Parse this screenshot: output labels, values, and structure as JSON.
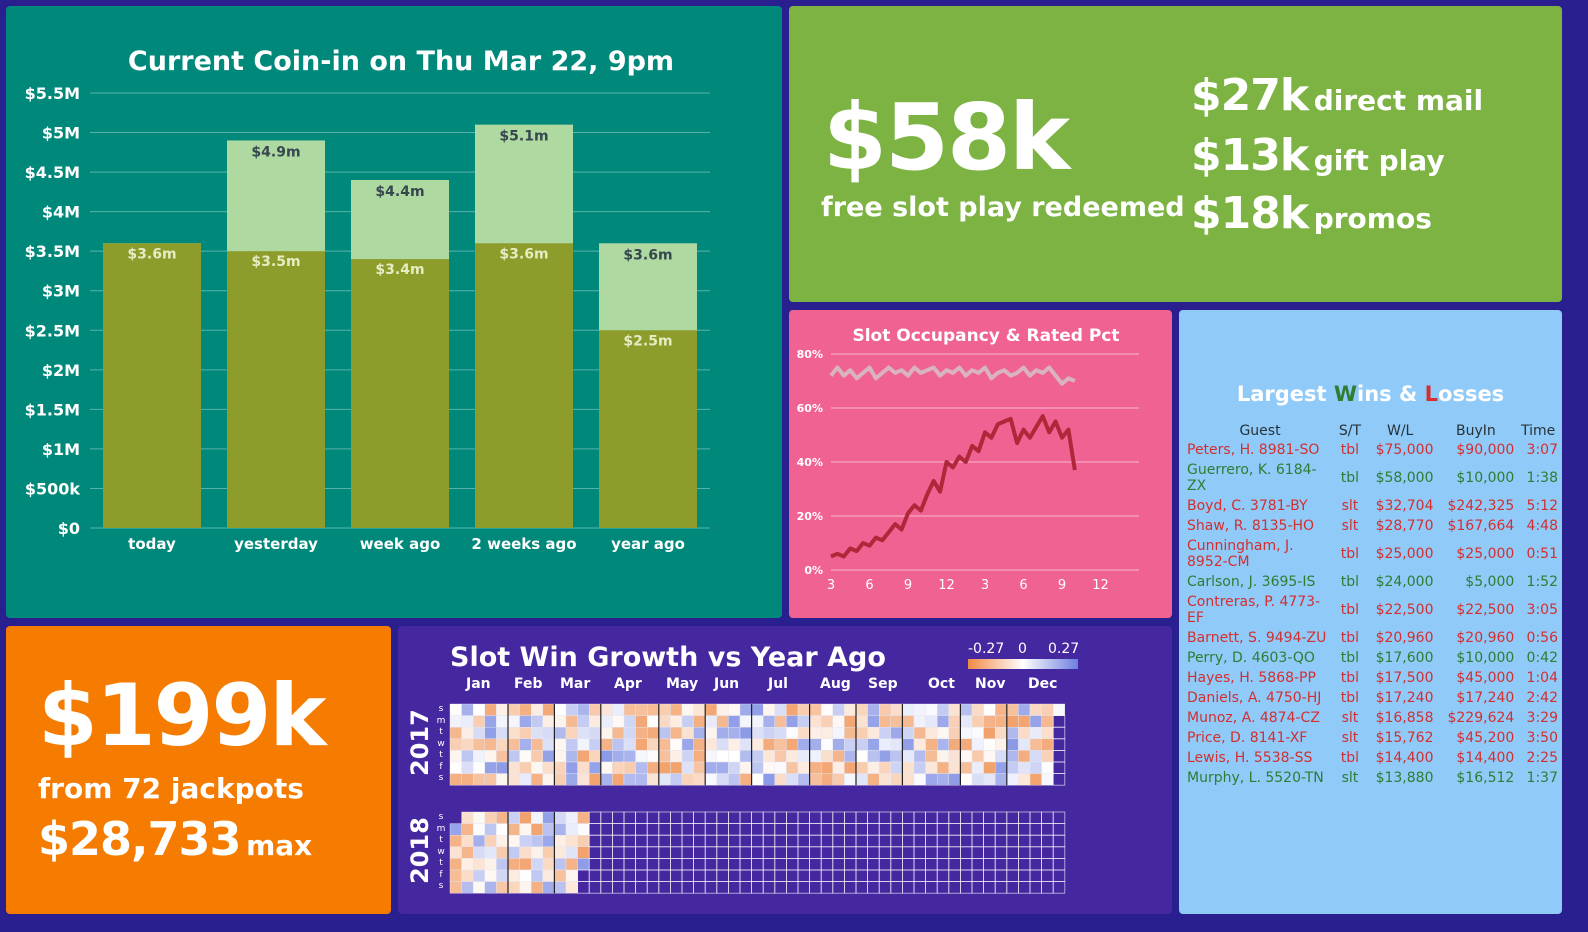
{
  "coin": {
    "title": "Current Coin-in on Thu Mar 22, 9pm",
    "chart_data": {
      "type": "bar",
      "title": "Current Coin-in on Thu Mar 22, 9pm",
      "categories": [
        "today",
        "yesterday",
        "week ago",
        "2 weeks ago",
        "year ago"
      ],
      "series": [
        {
          "values": [
            3.6,
            3.5,
            3.4,
            3.6,
            2.5
          ],
          "labels": [
            "$3.6m",
            "$3.5m",
            "$3.4m",
            "$3.6m",
            "$2.5m"
          ]
        },
        {
          "values": [
            3.6,
            4.9,
            4.4,
            5.1,
            3.6
          ],
          "labels": [
            "",
            "$4.9m",
            "$4.4m",
            "$5.1m",
            "$3.6m"
          ]
        }
      ],
      "yticks": [
        "$0",
        "$500k",
        "$1M",
        "$1.5M",
        "$2M",
        "$2.5M",
        "$3M",
        "$3.5M",
        "$4M",
        "$4.5M",
        "$5M",
        "$5.5M"
      ],
      "ylim": [
        0,
        5.5
      ],
      "colors": {
        "current": "#8e9c2c",
        "total": "#aed9a0"
      }
    }
  },
  "free": {
    "big": "$58k",
    "label": "free slot play redeemed",
    "rows": [
      {
        "amt": "$27k",
        "lbl": "direct mail"
      },
      {
        "amt": "$13k",
        "lbl": "gift play"
      },
      {
        "amt": "$18k",
        "lbl": "promos"
      }
    ]
  },
  "occ": {
    "title": "Slot Occupancy & Rated Pct",
    "chart_data": {
      "type": "line",
      "title": "Slot Occupancy & Rated Pct",
      "yticks": [
        "0%",
        "20%",
        "40%",
        "60%",
        "80%"
      ],
      "ylim": [
        0,
        80
      ],
      "xticks": [
        "3",
        "6",
        "9",
        "12",
        "3",
        "6",
        "9",
        "12"
      ],
      "xlim": [
        0,
        24
      ],
      "series": [
        {
          "color": "#d9b3bd",
          "x": [
            0,
            0.5,
            1,
            1.5,
            2,
            2.5,
            3,
            3.5,
            4,
            4.5,
            5,
            5.5,
            6,
            6.5,
            7,
            7.5,
            8,
            8.5,
            9,
            9.5,
            10,
            10.5,
            11,
            11.5,
            12,
            12.5,
            13,
            13.5,
            14,
            14.5,
            15,
            15.5,
            16,
            16.5,
            17,
            17.5,
            18,
            18.5,
            19
          ],
          "y": [
            72,
            75,
            72,
            74,
            71,
            73,
            75,
            71,
            73,
            75,
            73,
            74,
            72,
            75,
            73,
            74,
            75,
            72,
            74,
            73,
            75,
            72,
            74,
            73,
            75,
            71,
            73,
            74,
            72,
            73,
            75,
            72,
            74,
            73,
            75,
            72,
            69,
            71,
            70
          ]
        },
        {
          "color": "#b0273a",
          "x": [
            0,
            0.5,
            1,
            1.5,
            2,
            2.5,
            3,
            3.5,
            4,
            4.5,
            5,
            5.5,
            6,
            6.5,
            7,
            7.5,
            8,
            8.5,
            9,
            9.5,
            10,
            10.5,
            11,
            11.5,
            12,
            12.5,
            13,
            13.5,
            14,
            14.5,
            15,
            15.5,
            16,
            16.5,
            17,
            17.5,
            18,
            18.5,
            19
          ],
          "y": [
            5,
            6,
            5,
            8,
            7,
            10,
            9,
            12,
            11,
            14,
            17,
            15,
            21,
            24,
            22,
            28,
            33,
            29,
            40,
            38,
            42,
            40,
            46,
            44,
            51,
            49,
            54,
            55,
            56,
            47,
            52,
            49,
            53,
            57,
            51,
            55,
            49,
            52,
            37
          ]
        }
      ]
    }
  },
  "wins": {
    "title_parts": [
      "Largest ",
      "W",
      "ins & ",
      "L",
      "osses"
    ],
    "headers": [
      "Guest",
      "S/T",
      "W/L",
      "BuyIn",
      "Time"
    ],
    "rows": [
      {
        "guest": "Peters, H. 8981-SO",
        "st": "tbl",
        "wl": "$75,000",
        "buyin": "$90,000",
        "time": "3:07",
        "kind": "loss"
      },
      {
        "guest": "Guerrero, K. 6184-ZX",
        "st": "tbl",
        "wl": "$58,000",
        "buyin": "$10,000",
        "time": "1:38",
        "kind": "win"
      },
      {
        "guest": "Boyd, C. 3781-BY",
        "st": "slt",
        "wl": "$32,704",
        "buyin": "$242,325",
        "time": "5:12",
        "kind": "loss"
      },
      {
        "guest": "Shaw, R. 8135-HO",
        "st": "slt",
        "wl": "$28,770",
        "buyin": "$167,664",
        "time": "4:48",
        "kind": "loss"
      },
      {
        "guest": "Cunningham, J. 8952-CM",
        "st": "tbl",
        "wl": "$25,000",
        "buyin": "$25,000",
        "time": "0:51",
        "kind": "loss"
      },
      {
        "guest": "Carlson, J. 3695-IS",
        "st": "tbl",
        "wl": "$24,000",
        "buyin": "$5,000",
        "time": "1:52",
        "kind": "win"
      },
      {
        "guest": "Contreras, P. 4773-EF",
        "st": "tbl",
        "wl": "$22,500",
        "buyin": "$22,500",
        "time": "3:05",
        "kind": "loss"
      },
      {
        "guest": "Barnett, S. 9494-ZU",
        "st": "tbl",
        "wl": "$20,960",
        "buyin": "$20,960",
        "time": "0:56",
        "kind": "loss"
      },
      {
        "guest": "Perry, D. 4603-QO",
        "st": "tbl",
        "wl": "$17,600",
        "buyin": "$10,000",
        "time": "0:42",
        "kind": "win"
      },
      {
        "guest": "Hayes, H. 5868-PP",
        "st": "tbl",
        "wl": "$17,500",
        "buyin": "$45,000",
        "time": "1:04",
        "kind": "loss"
      },
      {
        "guest": "Daniels, A. 4750-HJ",
        "st": "tbl",
        "wl": "$17,240",
        "buyin": "$17,240",
        "time": "2:42",
        "kind": "loss"
      },
      {
        "guest": "Munoz, A. 4874-CZ",
        "st": "slt",
        "wl": "$16,858",
        "buyin": "$229,624",
        "time": "3:29",
        "kind": "loss"
      },
      {
        "guest": "Price, D. 8141-XF",
        "st": "slt",
        "wl": "$15,762",
        "buyin": "$45,200",
        "time": "3:50",
        "kind": "loss"
      },
      {
        "guest": "Lewis, H. 5538-SS",
        "st": "tbl",
        "wl": "$14,400",
        "buyin": "$14,400",
        "time": "2:25",
        "kind": "loss"
      },
      {
        "guest": "Murphy, L. 5520-TN",
        "st": "slt",
        "wl": "$13,880",
        "buyin": "$16,512",
        "time": "1:37",
        "kind": "win"
      }
    ]
  },
  "jack": {
    "big": "$199k",
    "label": "from 72 jackpots",
    "max_amt": "$28,733",
    "max_lbl": "max"
  },
  "growth": {
    "title": "Slot Win Growth vs Year Ago",
    "months": [
      "Jan",
      "Feb",
      "Mar",
      "Apr",
      "May",
      "Jun",
      "Jul",
      "Aug",
      "Sep",
      "Oct",
      "Nov",
      "Dec"
    ],
    "years": [
      "2017",
      "2018"
    ],
    "dow": [
      "s",
      "m",
      "t",
      "w",
      "t",
      "f",
      "s"
    ],
    "legend": [
      "-0.27",
      "0",
      "0.27"
    ],
    "colors": {
      "neg": "#ef8a47",
      "pos": "#6d7fe0"
    }
  }
}
